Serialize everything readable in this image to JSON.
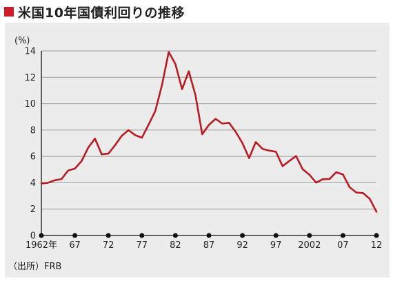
{
  "header": {
    "title": "米国10年国債利回りの推移",
    "marker_color": "#cc1e2a"
  },
  "source": "（出所）FRB",
  "colors": {
    "panel_background": "#ececec",
    "gridline": "#9a9a9a",
    "axis": "#333333",
    "series_line": "#b81c22",
    "tick_dot": "#111111",
    "text": "#222222"
  },
  "chart_data": {
    "type": "line",
    "title": "",
    "ylabel": "(%)",
    "xlabel": "",
    "ylim": [
      0,
      14
    ],
    "xlim": [
      1962,
      2012
    ],
    "yticks": [
      0,
      2,
      4,
      6,
      8,
      10,
      12,
      14
    ],
    "xticks": [
      {
        "year": 1962,
        "label": "1962年"
      },
      {
        "year": 1967,
        "label": "67"
      },
      {
        "year": 1972,
        "label": "72"
      },
      {
        "year": 1977,
        "label": "77"
      },
      {
        "year": 1982,
        "label": "82"
      },
      {
        "year": 1987,
        "label": "87"
      },
      {
        "year": 1992,
        "label": "92"
      },
      {
        "year": 1997,
        "label": "97"
      },
      {
        "year": 2002,
        "label": "2002"
      },
      {
        "year": 2007,
        "label": "07"
      },
      {
        "year": 2012,
        "label": "12"
      }
    ],
    "grid": true,
    "legend": "none",
    "series": [
      {
        "x": [
          1962,
          1963,
          1964,
          1965,
          1966,
          1967,
          1968,
          1969,
          1970,
          1971,
          1972,
          1973,
          1974,
          1975,
          1976,
          1977,
          1978,
          1979,
          1980,
          1981,
          1982,
          1983,
          1984,
          1985,
          1986,
          1987,
          1988,
          1989,
          1990,
          1991,
          1992,
          1993,
          1994,
          1995,
          1996,
          1997,
          1998,
          1999,
          2000,
          2001,
          2002,
          2003,
          2004,
          2005,
          2006,
          2007,
          2008,
          2009,
          2010,
          2011,
          2012
        ],
        "y": [
          3.95,
          4.0,
          4.19,
          4.28,
          4.93,
          5.07,
          5.64,
          6.67,
          7.35,
          6.16,
          6.21,
          6.85,
          7.56,
          7.99,
          7.61,
          7.42,
          8.41,
          9.44,
          11.43,
          13.92,
          13.01,
          11.1,
          12.46,
          10.62,
          7.68,
          8.39,
          8.85,
          8.49,
          8.55,
          7.86,
          7.01,
          5.87,
          7.09,
          6.57,
          6.44,
          6.35,
          5.26,
          5.65,
          6.03,
          5.02,
          4.61,
          4.01,
          4.27,
          4.29,
          4.8,
          4.63,
          3.66,
          3.26,
          3.22,
          2.78,
          1.8
        ]
      }
    ]
  }
}
